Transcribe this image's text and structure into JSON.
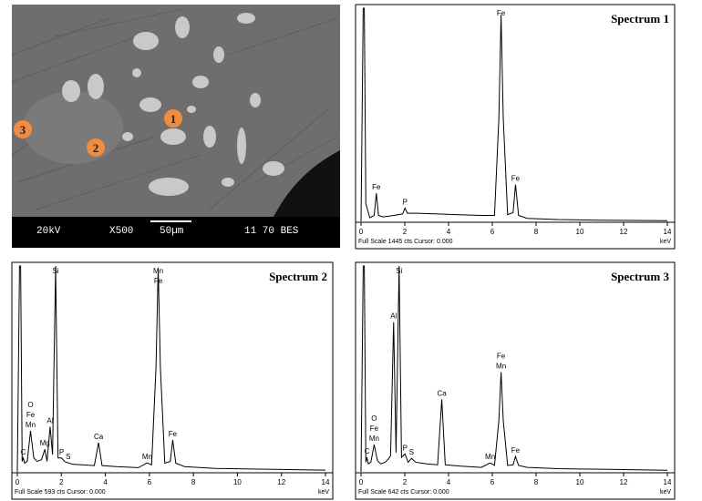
{
  "sem_image": {
    "markers": [
      "1",
      "2",
      "3"
    ],
    "info": [
      "20kV",
      "X500",
      "50µm",
      "11 70 BES"
    ]
  },
  "chart_data": [
    {
      "type": "line",
      "title": "Spectrum 1",
      "xlabel": "keV",
      "footer": "Full Scale 1445 cts Cursor: 0.000",
      "color": "#000000",
      "x": [
        0,
        0.1,
        0.15,
        0.22,
        0.4,
        0.6,
        0.7,
        0.8,
        1,
        1.5,
        1.9,
        2.01,
        2.12,
        2.6,
        3.5,
        4.5,
        5.5,
        6.1,
        6.3,
        6.4,
        6.5,
        6.7,
        6.95,
        7.06,
        7.2,
        7.6,
        9,
        11,
        14
      ],
      "values": [
        0,
        1445,
        1445,
        120,
        25,
        40,
        190,
        40,
        30,
        40,
        50,
        90,
        55,
        55,
        50,
        45,
        40,
        40,
        700,
        1400,
        700,
        45,
        60,
        250,
        40,
        20,
        12,
        8,
        5
      ],
      "xlim": [
        0,
        14
      ],
      "ylim": [
        0,
        1445
      ],
      "xticks": [
        0,
        2,
        4,
        6,
        8,
        10,
        12,
        14
      ],
      "peaks": [
        {
          "labels": [
            "Fe"
          ],
          "x": 0.7,
          "value": 190
        },
        {
          "labels": [
            "P"
          ],
          "x": 2.01,
          "value": 90
        },
        {
          "labels": [
            "Fe"
          ],
          "x": 6.4,
          "value": 1400
        },
        {
          "labels": [
            "Fe"
          ],
          "x": 7.06,
          "value": 250
        }
      ]
    },
    {
      "type": "line",
      "title": "Spectrum 2",
      "xlabel": "keV",
      "footer": "Full Scale 593 cts Cursor: 0.000",
      "color": "#000000",
      "x": [
        0,
        0.1,
        0.15,
        0.22,
        0.27,
        0.33,
        0.45,
        0.6,
        0.75,
        0.9,
        1.1,
        1.25,
        1.35,
        1.49,
        1.6,
        1.74,
        1.85,
        2.01,
        2.15,
        2.31,
        2.5,
        3,
        3.5,
        3.69,
        3.85,
        4.5,
        5.5,
        5.9,
        6.1,
        6.3,
        6.4,
        6.5,
        6.7,
        6.95,
        7.06,
        7.2,
        7.6,
        9,
        11,
        14
      ],
      "values": [
        0,
        593,
        593,
        30,
        40,
        25,
        30,
        118,
        40,
        30,
        35,
        65,
        30,
        130,
        50,
        593,
        40,
        40,
        30,
        26,
        22,
        20,
        18,
        84,
        18,
        15,
        12,
        26,
        20,
        300,
        588,
        300,
        25,
        30,
        92,
        25,
        15,
        10,
        8,
        5
      ],
      "xlim": [
        0,
        14
      ],
      "ylim": [
        0,
        593
      ],
      "xticks": [
        0,
        2,
        4,
        6,
        8,
        10,
        12,
        14
      ],
      "peaks": [
        {
          "labels": [
            "C"
          ],
          "x": 0.27,
          "value": 40
        },
        {
          "labels": [
            "O",
            "Fe",
            "Mn"
          ],
          "x": 0.6,
          "value": 118
        },
        {
          "labels": [
            "Mg"
          ],
          "x": 1.25,
          "value": 65
        },
        {
          "labels": [
            "Al"
          ],
          "x": 1.49,
          "value": 130
        },
        {
          "labels": [
            "Si"
          ],
          "x": 1.74,
          "value": 593
        },
        {
          "labels": [
            "P"
          ],
          "x": 2.01,
          "value": 40
        },
        {
          "labels": [
            "S"
          ],
          "x": 2.31,
          "value": 26
        },
        {
          "labels": [
            "Ca"
          ],
          "x": 3.69,
          "value": 84
        },
        {
          "labels": [
            "Mn"
          ],
          "x": 5.9,
          "value": 26
        },
        {
          "labels": [
            "Mn",
            "Fe"
          ],
          "x": 6.4,
          "value": 588
        },
        {
          "labels": [
            "Fe"
          ],
          "x": 7.06,
          "value": 92
        }
      ]
    },
    {
      "type": "line",
      "title": "Spectrum 3",
      "xlabel": "keV",
      "footer": "Full Scale 642 cts Cursor: 0.000",
      "color": "#000000",
      "x": [
        0,
        0.1,
        0.15,
        0.22,
        0.27,
        0.33,
        0.45,
        0.6,
        0.75,
        0.9,
        1.1,
        1.25,
        1.35,
        1.49,
        1.6,
        1.74,
        1.85,
        2.01,
        2.15,
        2.31,
        2.5,
        3,
        3.5,
        3.69,
        3.85,
        4.5,
        5.5,
        5.9,
        6.1,
        6.3,
        6.4,
        6.5,
        6.7,
        6.95,
        7.06,
        7.2,
        7.6,
        9,
        11,
        14
      ],
      "values": [
        0,
        642,
        642,
        30,
        45,
        25,
        30,
        85,
        35,
        25,
        30,
        40,
        50,
        467,
        60,
        642,
        45,
        56,
        30,
        42,
        30,
        25,
        22,
        226,
        22,
        18,
        14,
        28,
        20,
        160,
        311,
        160,
        20,
        22,
        48,
        20,
        14,
        10,
        8,
        5
      ],
      "xlim": [
        0,
        14
      ],
      "ylim": [
        0,
        642
      ],
      "xticks": [
        0,
        2,
        4,
        6,
        8,
        10,
        12,
        14
      ],
      "peaks": [
        {
          "labels": [
            "C"
          ],
          "x": 0.27,
          "value": 45
        },
        {
          "labels": [
            "O",
            "Fe",
            "Mn"
          ],
          "x": 0.6,
          "value": 85
        },
        {
          "labels": [
            "Al"
          ],
          "x": 1.49,
          "value": 467
        },
        {
          "labels": [
            "Si"
          ],
          "x": 1.74,
          "value": 642
        },
        {
          "labels": [
            "P"
          ],
          "x": 2.01,
          "value": 56
        },
        {
          "labels": [
            "S"
          ],
          "x": 2.31,
          "value": 42
        },
        {
          "labels": [
            "Ca"
          ],
          "x": 3.69,
          "value": 226
        },
        {
          "labels": [
            "Mn"
          ],
          "x": 5.9,
          "value": 28
        },
        {
          "labels": [
            "Fe",
            "Mn"
          ],
          "x": 6.4,
          "value": 311
        },
        {
          "labels": [
            "Fe"
          ],
          "x": 7.06,
          "value": 48
        }
      ]
    }
  ]
}
